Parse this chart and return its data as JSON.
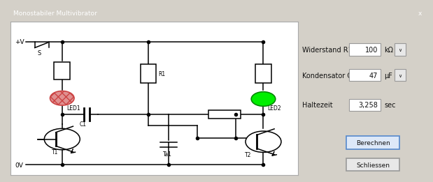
{
  "title": "Monostabiler Multivibrator",
  "bg_outer": "#d4d0c8",
  "bg_circuit": "#ffffff",
  "bg_panel": "#e8e8e8",
  "title_bar_color": "#3a6ea5",
  "title_text_color": "#ffffff",
  "line_color": "#000000",
  "led1_color": "#e09090",
  "led1_edge": "#cc4444",
  "led2_color": "#00ee00",
  "led2_edge": "#008800",
  "labels": {
    "R1_label": "Widerstand R1",
    "C1_label": "Kondensator C1",
    "haltezeit_label": "Haltezeit",
    "R1_value": "100",
    "R1_unit": "kΩ",
    "C1_value": "47",
    "C1_unit": "μF",
    "haltezeit_value": "3,258",
    "haltezeit_unit": "sec"
  },
  "buttons": [
    "Berechnen",
    "Schliessen"
  ]
}
